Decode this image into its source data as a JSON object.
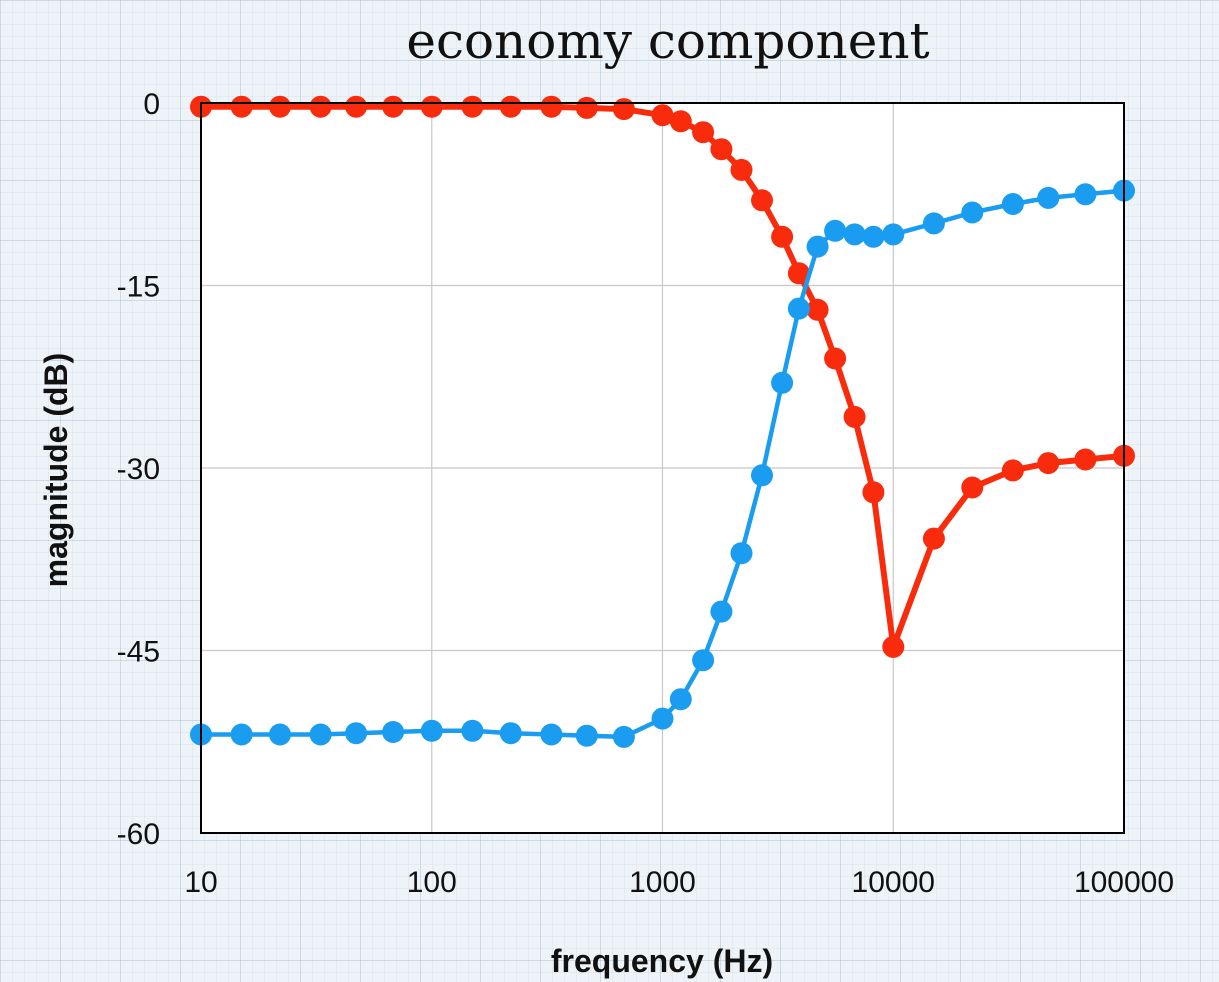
{
  "chart_data": {
    "type": "line",
    "title": "economy component",
    "xlabel": "frequency (Hz)",
    "ylabel": "magnitude (dB)",
    "x_scale": "log",
    "xlim": [
      10,
      100000
    ],
    "ylim": [
      -60,
      0
    ],
    "x_ticks": [
      10,
      100,
      1000,
      10000,
      100000
    ],
    "x_tick_labels": [
      "10",
      "100",
      "1000",
      "10000",
      "100000"
    ],
    "y_ticks": [
      0,
      -15,
      -30,
      -45,
      -60
    ],
    "y_tick_labels": [
      "0",
      "-15",
      "-30",
      "-45",
      "-60"
    ],
    "grid": true,
    "legend": "none",
    "series": [
      {
        "color": "#f82c0c",
        "points": [
          [
            10,
            -0.3
          ],
          [
            15,
            -0.3
          ],
          [
            22,
            -0.3
          ],
          [
            33,
            -0.3
          ],
          [
            47,
            -0.3
          ],
          [
            68,
            -0.3
          ],
          [
            100,
            -0.3
          ],
          [
            150,
            -0.3
          ],
          [
            220,
            -0.3
          ],
          [
            330,
            -0.3
          ],
          [
            470,
            -0.4
          ],
          [
            680,
            -0.5
          ],
          [
            1000,
            -1.0
          ],
          [
            1200,
            -1.5
          ],
          [
            1500,
            -2.4
          ],
          [
            1800,
            -3.8
          ],
          [
            2200,
            -5.5
          ],
          [
            2700,
            -8.0
          ],
          [
            3300,
            -11.0
          ],
          [
            3900,
            -14.0
          ],
          [
            4700,
            -17.0
          ],
          [
            5600,
            -21.0
          ],
          [
            6800,
            -25.8
          ],
          [
            8200,
            -32.0
          ],
          [
            10000,
            -44.7
          ],
          [
            15000,
            -35.8
          ],
          [
            22000,
            -31.6
          ],
          [
            33000,
            -30.2
          ],
          [
            47000,
            -29.6
          ],
          [
            68000,
            -29.3
          ],
          [
            100000,
            -29.0
          ]
        ]
      },
      {
        "color": "#1a9cf0",
        "points": [
          [
            10,
            -51.9
          ],
          [
            15,
            -51.9
          ],
          [
            22,
            -51.9
          ],
          [
            33,
            -51.9
          ],
          [
            47,
            -51.8
          ],
          [
            68,
            -51.7
          ],
          [
            100,
            -51.6
          ],
          [
            150,
            -51.6
          ],
          [
            220,
            -51.8
          ],
          [
            330,
            -51.9
          ],
          [
            470,
            -52.0
          ],
          [
            680,
            -52.1
          ],
          [
            1000,
            -50.6
          ],
          [
            1200,
            -49.0
          ],
          [
            1500,
            -45.8
          ],
          [
            1800,
            -41.8
          ],
          [
            2200,
            -37.0
          ],
          [
            2700,
            -30.6
          ],
          [
            3300,
            -23.0
          ],
          [
            3900,
            -16.9
          ],
          [
            4700,
            -11.8
          ],
          [
            5600,
            -10.5
          ],
          [
            6800,
            -10.8
          ],
          [
            8200,
            -11.0
          ],
          [
            10000,
            -10.8
          ],
          [
            15000,
            -9.9
          ],
          [
            22000,
            -9.0
          ],
          [
            33000,
            -8.3
          ],
          [
            47000,
            -7.8
          ],
          [
            68000,
            -7.5
          ],
          [
            100000,
            -7.2
          ]
        ]
      }
    ]
  }
}
